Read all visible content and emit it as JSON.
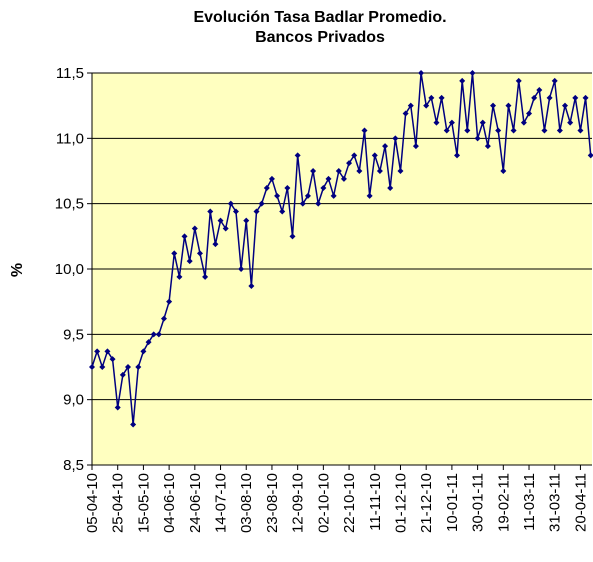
{
  "chart_data": {
    "type": "line",
    "title": [
      "Evolución Tasa Badlar Promedio.",
      "Bancos Privados"
    ],
    "y_label": "%",
    "x": [
      "05-04-10",
      "09-04-10",
      "13-04-10",
      "17-04-10",
      "21-04-10",
      "25-04-10",
      "29-04-10",
      "03-05-10",
      "07-05-10",
      "11-05-10",
      "15-05-10",
      "19-05-10",
      "23-05-10",
      "27-05-10",
      "31-05-10",
      "04-06-10",
      "08-06-10",
      "12-06-10",
      "16-06-10",
      "20-06-10",
      "24-06-10",
      "28-06-10",
      "02-07-10",
      "06-07-10",
      "10-07-10",
      "14-07-10",
      "18-07-10",
      "22-07-10",
      "26-07-10",
      "30-07-10",
      "03-08-10",
      "07-08-10",
      "11-08-10",
      "15-08-10",
      "19-08-10",
      "23-08-10",
      "27-08-10",
      "31-08-10",
      "04-09-10",
      "08-09-10",
      "12-09-10",
      "16-09-10",
      "20-09-10",
      "24-09-10",
      "28-09-10",
      "02-10-10",
      "06-10-10",
      "10-10-10",
      "14-10-10",
      "18-10-10",
      "22-10-10",
      "26-10-10",
      "30-10-10",
      "03-11-10",
      "07-11-10",
      "11-11-10",
      "15-11-10",
      "19-11-10",
      "23-11-10",
      "27-11-10",
      "01-12-10",
      "05-12-10",
      "09-12-10",
      "13-12-10",
      "17-12-10",
      "21-12-10",
      "25-12-10",
      "29-12-10",
      "02-01-11",
      "06-01-11",
      "10-01-11",
      "14-01-11",
      "18-01-11",
      "22-01-11",
      "26-01-11",
      "30-01-11",
      "03-02-11",
      "07-02-11",
      "11-02-11",
      "15-02-11",
      "19-02-11",
      "23-02-11",
      "27-02-11",
      "03-03-11",
      "07-03-11",
      "11-03-11",
      "15-03-11",
      "19-03-11",
      "23-03-11",
      "27-03-11",
      "31-03-11",
      "04-04-11",
      "08-04-11",
      "12-04-11",
      "16-04-11",
      "20-04-11",
      "24-04-11",
      "28-04-11"
    ],
    "series": [
      {
        "color": "#000080",
        "values": [
          9.25,
          9.37,
          9.25,
          9.37,
          9.31,
          8.94,
          9.19,
          9.25,
          8.81,
          9.25,
          9.37,
          9.44,
          9.5,
          9.5,
          9.62,
          9.75,
          10.12,
          9.94,
          10.25,
          10.06,
          10.31,
          10.12,
          9.94,
          10.44,
          10.19,
          10.37,
          10.31,
          10.5,
          10.44,
          10.0,
          10.37,
          9.87,
          10.44,
          10.5,
          10.62,
          10.69,
          10.56,
          10.44,
          10.62,
          10.25,
          10.87,
          10.5,
          10.56,
          10.75,
          10.5,
          10.62,
          10.69,
          10.56,
          10.75,
          10.69,
          10.81,
          10.87,
          10.75,
          11.06,
          10.56,
          10.87,
          10.75,
          10.94,
          10.62,
          11.0,
          10.75,
          11.19,
          11.25,
          10.94,
          11.5,
          11.25,
          11.31,
          11.12,
          11.31,
          11.06,
          11.12,
          10.87,
          11.44,
          11.06,
          11.5,
          11.0,
          11.12,
          10.94,
          11.25,
          11.06,
          10.75,
          11.25,
          11.06,
          11.44,
          11.12,
          11.19,
          11.31,
          11.37,
          11.06,
          11.31,
          11.44,
          11.06,
          11.25,
          11.12,
          11.31,
          11.06,
          11.31,
          10.87
        ]
      }
    ],
    "xlim": [
      "05-04-10",
      "29-04-11"
    ],
    "xticks": [
      "05-04-10",
      "25-04-10",
      "15-05-10",
      "04-06-10",
      "24-06-10",
      "14-07-10",
      "03-08-10",
      "23-08-10",
      "12-09-10",
      "02-10-10",
      "22-10-10",
      "11-11-10",
      "01-12-10",
      "21-12-10",
      "10-01-11",
      "30-01-11",
      "19-02-11",
      "11-03-11",
      "31-03-11",
      "20-04-11"
    ],
    "ylim": [
      8.5,
      11.5
    ],
    "yticks": [
      {
        "value": 8.5,
        "label": "8,5"
      },
      {
        "value": 9,
        "label": "9,0"
      },
      {
        "value": 9.5,
        "label": "9,5"
      },
      {
        "value": 10,
        "label": "10,0"
      },
      {
        "value": 10.5,
        "label": "10,5"
      },
      {
        "value": 11,
        "label": "11,0"
      },
      {
        "value": 11.5,
        "label": "11,5"
      }
    ],
    "grid": true,
    "plot_background": "#ffffc0"
  }
}
